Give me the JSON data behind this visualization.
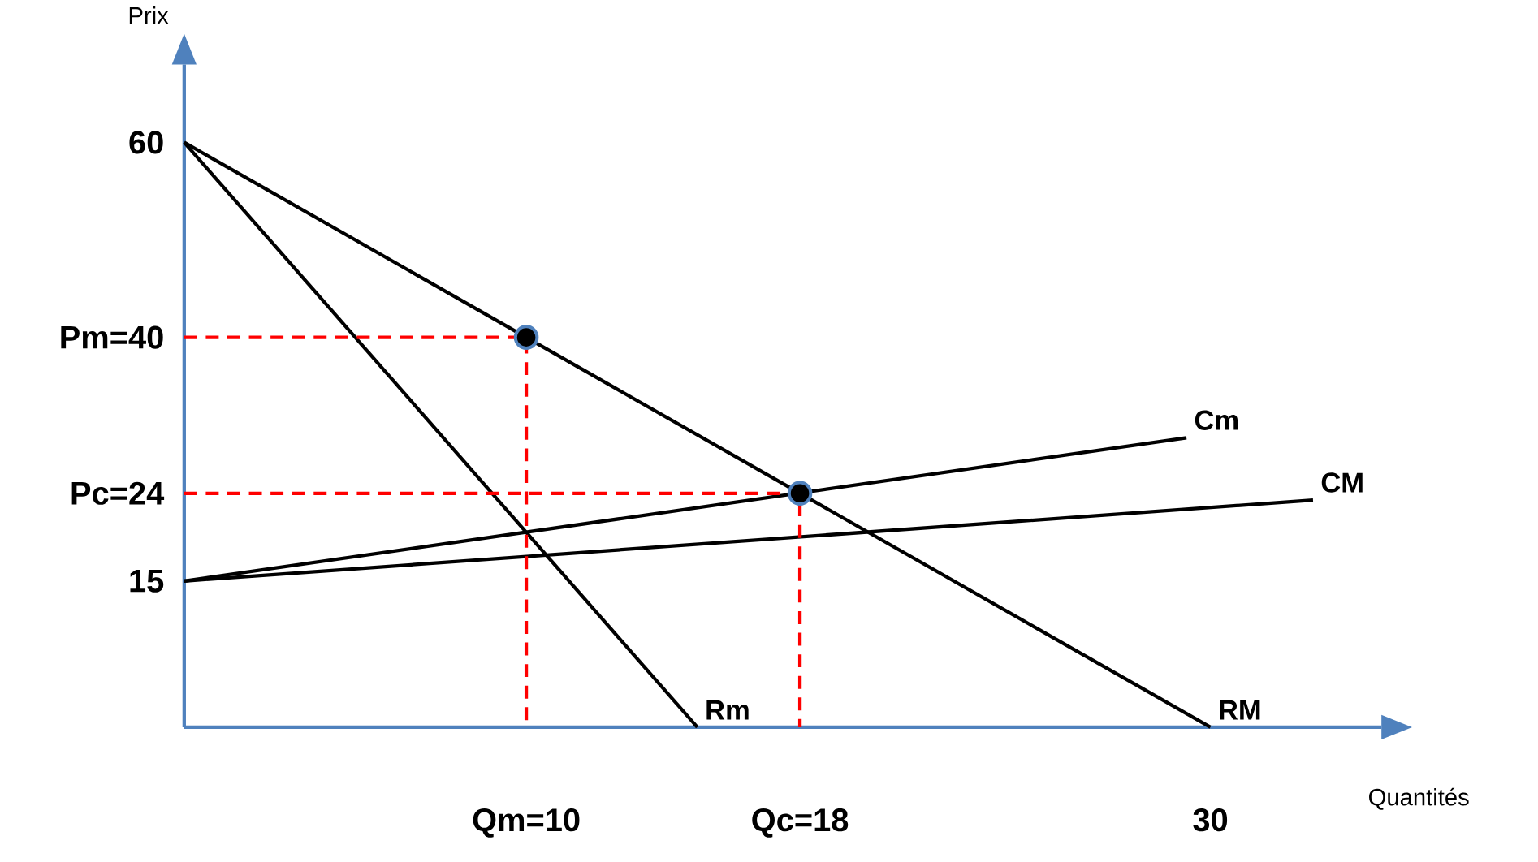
{
  "chart_data": {
    "type": "line",
    "xlabel": "Quantités",
    "ylabel": "Prix",
    "xlim": [
      0,
      35
    ],
    "ylim": [
      0,
      68
    ],
    "xticks": [
      {
        "value": 10,
        "label": "Qm=10"
      },
      {
        "value": 18,
        "label": "Qc=18"
      },
      30
    ],
    "yticks": [
      15,
      {
        "value": 24,
        "label": "Pc=24"
      },
      {
        "value": 40,
        "label": "Pm=40"
      },
      60
    ],
    "grid": false,
    "legend": false,
    "series": [
      {
        "name": "RM",
        "color": "#000000",
        "x": [
          0,
          30
        ],
        "values": [
          60,
          0
        ],
        "marker": "none",
        "line_style": "solid"
      },
      {
        "name": "Rm",
        "color": "#000000",
        "x": [
          0,
          15
        ],
        "values": [
          60,
          0
        ],
        "marker": "none",
        "line_style": "solid"
      },
      {
        "name": "Cm",
        "color": "#000000",
        "x": [
          0,
          29.3
        ],
        "values": [
          15,
          29.7
        ],
        "marker": "none",
        "line_style": "solid"
      },
      {
        "name": "CM",
        "color": "#000000",
        "x": [
          0,
          33
        ],
        "values": [
          15,
          23.3
        ],
        "marker": "none",
        "line_style": "solid"
      },
      {
        "color": "#ff0000",
        "x": [
          0,
          10,
          10
        ],
        "values": [
          40,
          40,
          0
        ],
        "marker": "none",
        "line_style": "dashed"
      },
      {
        "color": "#ff0000",
        "x": [
          0,
          18,
          18
        ],
        "values": [
          24,
          24,
          0
        ],
        "marker": "none",
        "line_style": "dashed"
      },
      {
        "type": "scatter",
        "color": "#000000",
        "x": [
          10,
          18
        ],
        "values": [
          40,
          24
        ],
        "marker": "circle"
      }
    ]
  }
}
